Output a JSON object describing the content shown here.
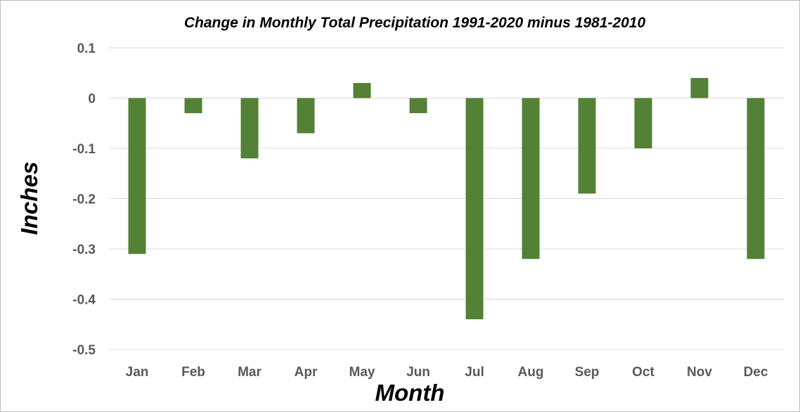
{
  "chart_data": {
    "type": "bar",
    "title": "Change in Monthly Total Precipitation 1991-2020 minus 1981-2010",
    "xlabel": "Month",
    "ylabel": "Inches",
    "categories": [
      "Jan",
      "Feb",
      "Mar",
      "Apr",
      "May",
      "Jun",
      "Jul",
      "Aug",
      "Sep",
      "Oct",
      "Nov",
      "Dec"
    ],
    "values": [
      -0.31,
      -0.03,
      -0.12,
      -0.07,
      0.03,
      -0.03,
      -0.44,
      -0.32,
      -0.19,
      -0.1,
      0.04,
      -0.32
    ],
    "ylim": [
      -0.5,
      0.1
    ],
    "yticks": [
      "0.1",
      "0",
      "-0.1",
      "-0.2",
      "-0.3",
      "-0.4",
      "-0.5"
    ],
    "ytick_values": [
      0.1,
      0,
      -0.1,
      -0.2,
      -0.3,
      -0.4,
      -0.5
    ],
    "grid": true,
    "bar_color": "#538135"
  }
}
